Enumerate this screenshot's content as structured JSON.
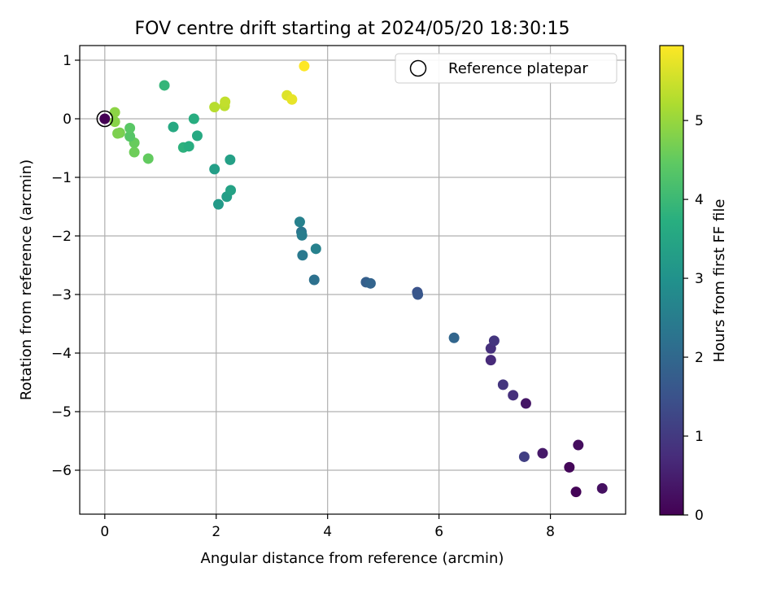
{
  "chart_data": {
    "type": "scatter",
    "title": "FOV centre drift starting at 2024/05/20 18:30:15",
    "xlabel": "Angular distance from reference (arcmin)",
    "ylabel": "Rotation from reference (arcmin)",
    "xlim": [
      -0.45,
      9.35
    ],
    "ylim": [
      -6.75,
      1.25
    ],
    "xticks": [
      0,
      2,
      4,
      6,
      8
    ],
    "yticks": [
      1,
      0,
      -1,
      -2,
      -3,
      -4,
      -5,
      -6
    ],
    "grid": true,
    "legend": {
      "position": "top-right",
      "entries": [
        "Reference platepar"
      ]
    },
    "reference_point": {
      "x": 0,
      "y": 0
    },
    "colorbar": {
      "label": "Hours from first FF file",
      "colormap": "viridis",
      "range": [
        0,
        5.95
      ],
      "ticks": [
        0,
        1,
        2,
        3,
        4,
        5
      ]
    },
    "points": [
      {
        "x": 0.0,
        "y": 0.0,
        "h": 0.0
      },
      {
        "x": 8.93,
        "y": -6.31,
        "h": 0.25
      },
      {
        "x": 8.46,
        "y": -6.37,
        "h": 0.05
      },
      {
        "x": 8.34,
        "y": -5.95,
        "h": 0.1
      },
      {
        "x": 8.5,
        "y": -5.57,
        "h": 0.2
      },
      {
        "x": 7.86,
        "y": -5.71,
        "h": 0.4
      },
      {
        "x": 7.53,
        "y": -5.77,
        "h": 1.1
      },
      {
        "x": 7.56,
        "y": -4.86,
        "h": 0.35
      },
      {
        "x": 7.33,
        "y": -4.72,
        "h": 0.8
      },
      {
        "x": 7.15,
        "y": -4.54,
        "h": 0.9
      },
      {
        "x": 6.93,
        "y": -4.12,
        "h": 0.7
      },
      {
        "x": 6.93,
        "y": -3.92,
        "h": 0.8
      },
      {
        "x": 6.99,
        "y": -3.79,
        "h": 0.9
      },
      {
        "x": 6.27,
        "y": -3.74,
        "h": 1.95
      },
      {
        "x": 5.61,
        "y": -2.96,
        "h": 1.5
      },
      {
        "x": 5.62,
        "y": -3.0,
        "h": 1.6
      },
      {
        "x": 4.69,
        "y": -2.79,
        "h": 1.8
      },
      {
        "x": 4.77,
        "y": -2.81,
        "h": 1.9
      },
      {
        "x": 3.76,
        "y": -2.75,
        "h": 2.2
      },
      {
        "x": 3.55,
        "y": -2.33,
        "h": 2.4
      },
      {
        "x": 3.79,
        "y": -2.22,
        "h": 2.6
      },
      {
        "x": 3.53,
        "y": -1.93,
        "h": 2.3
      },
      {
        "x": 3.54,
        "y": -1.99,
        "h": 2.5
      },
      {
        "x": 3.5,
        "y": -1.76,
        "h": 2.6
      },
      {
        "x": 2.04,
        "y": -1.46,
        "h": 3.2
      },
      {
        "x": 2.19,
        "y": -1.33,
        "h": 3.3
      },
      {
        "x": 2.26,
        "y": -1.22,
        "h": 3.4
      },
      {
        "x": 1.97,
        "y": -0.86,
        "h": 3.3
      },
      {
        "x": 2.25,
        "y": -0.7,
        "h": 3.35
      },
      {
        "x": 1.66,
        "y": -0.29,
        "h": 3.6
      },
      {
        "x": 1.6,
        "y": 0.0,
        "h": 3.7
      },
      {
        "x": 1.23,
        "y": -0.14,
        "h": 3.6
      },
      {
        "x": 1.41,
        "y": -0.49,
        "h": 3.8
      },
      {
        "x": 1.51,
        "y": -0.47,
        "h": 3.7
      },
      {
        "x": 1.07,
        "y": 0.57,
        "h": 3.9
      },
      {
        "x": 0.78,
        "y": -0.68,
        "h": 4.5
      },
      {
        "x": 0.53,
        "y": -0.57,
        "h": 4.6
      },
      {
        "x": 0.53,
        "y": -0.41,
        "h": 4.55
      },
      {
        "x": 0.45,
        "y": -0.3,
        "h": 4.35
      },
      {
        "x": 0.45,
        "y": -0.16,
        "h": 4.4
      },
      {
        "x": 0.27,
        "y": -0.24,
        "h": 4.7
      },
      {
        "x": 0.23,
        "y": -0.25,
        "h": 4.75
      },
      {
        "x": 0.18,
        "y": -0.05,
        "h": 4.85
      },
      {
        "x": 0.18,
        "y": 0.11,
        "h": 4.9
      },
      {
        "x": 1.97,
        "y": 0.2,
        "h": 5.3
      },
      {
        "x": 2.15,
        "y": 0.22,
        "h": 5.35
      },
      {
        "x": 2.16,
        "y": 0.29,
        "h": 5.4
      },
      {
        "x": 3.27,
        "y": 0.4,
        "h": 5.65
      },
      {
        "x": 3.36,
        "y": 0.33,
        "h": 5.75
      },
      {
        "x": 3.58,
        "y": 0.9,
        "h": 5.95
      }
    ]
  }
}
